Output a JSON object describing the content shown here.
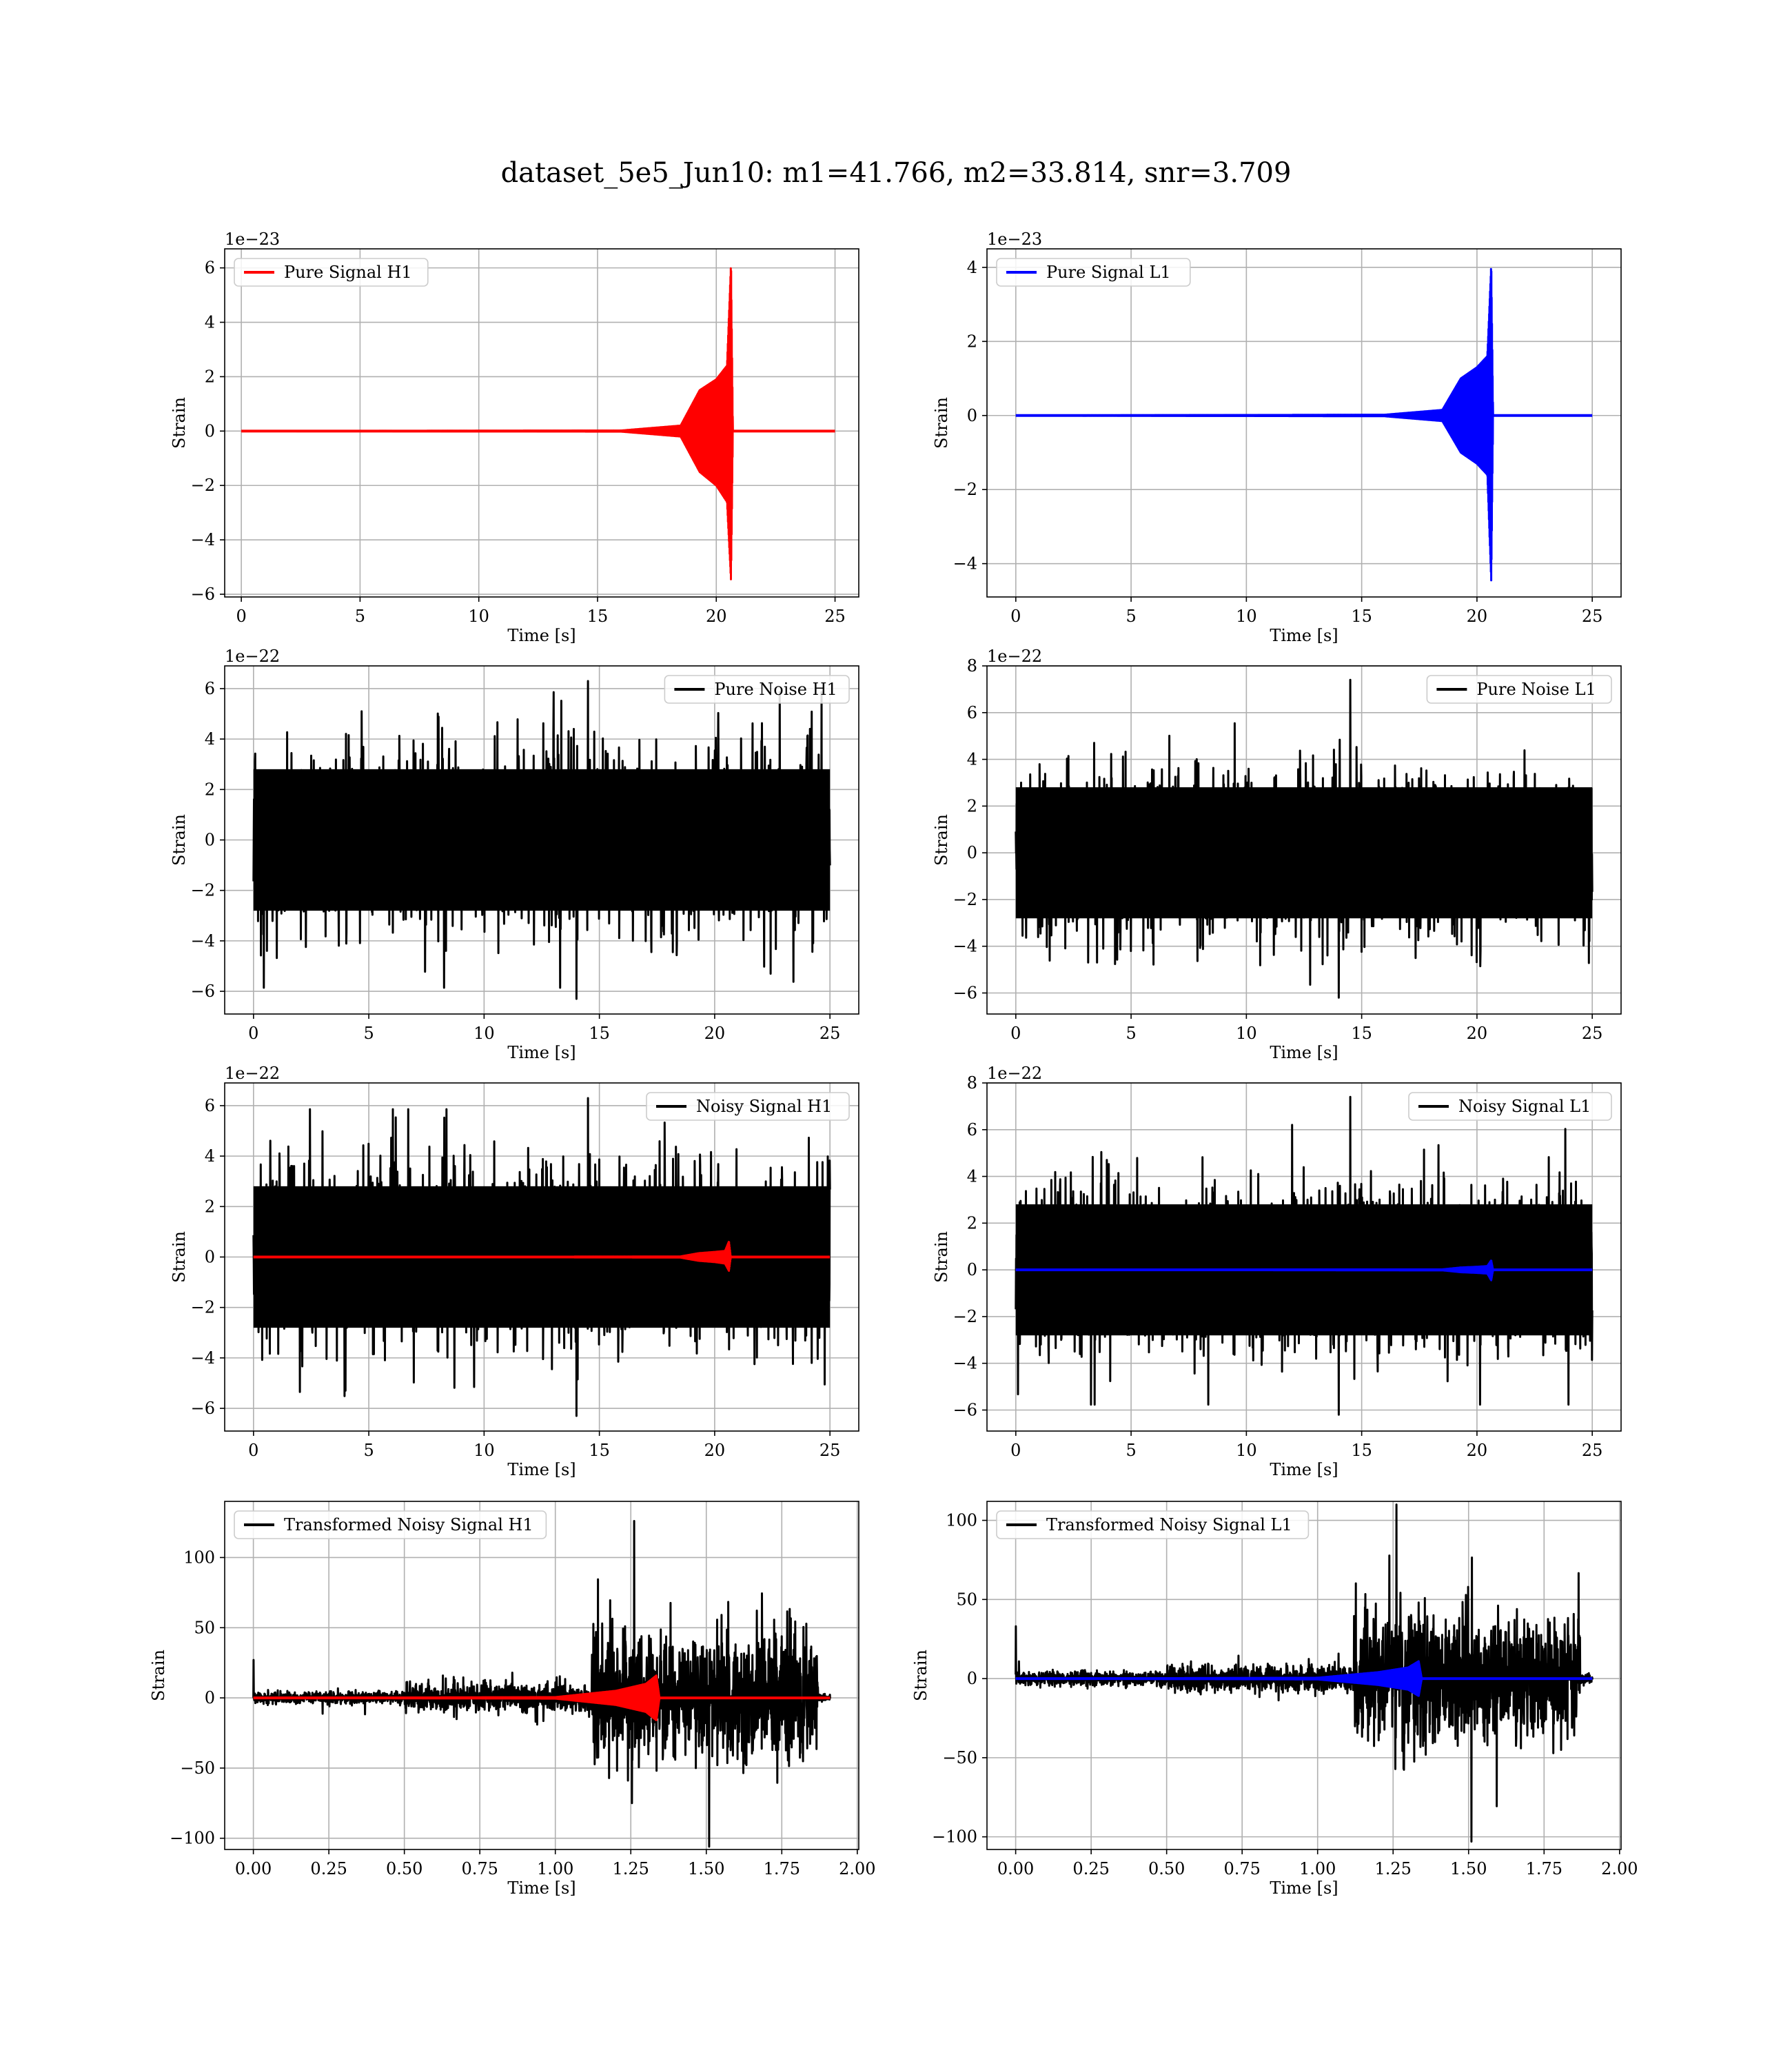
{
  "figure_title": "dataset_5e5_Jun10: m1=41.766, m2=33.814, snr=3.709",
  "colors": {
    "h1_signal": "#ff0000",
    "l1_signal": "#0000ff",
    "noise": "#000000",
    "grid": "#b0b0b0"
  },
  "chart_data": [
    {
      "type": "line",
      "panel": "pure-signal-h1",
      "legend": [
        "Pure Signal H1"
      ],
      "legend_placement": "upper-left",
      "xlabel": "Time [s]",
      "ylabel": "Strain",
      "offset_text": "1e−23",
      "xlim": [
        -0.7,
        26.0
      ],
      "ylim": [
        -6.1,
        6.7
      ],
      "xticks": [
        0,
        5,
        10,
        15,
        20,
        25
      ],
      "xtick_labels": [
        "0",
        "5",
        "10",
        "15",
        "20",
        "25"
      ],
      "yticks": [
        -6,
        -4,
        -2,
        0,
        2,
        4,
        6
      ],
      "ytick_labels": [
        "−6",
        "−4",
        "−2",
        "0",
        "2",
        "4",
        "6"
      ],
      "grid": true,
      "series": [
        {
          "name": "Pure Signal H1",
          "color": "#ff0000",
          "kind": "chirp",
          "envelope_pos": [
            [
              0,
              0
            ],
            [
              16,
              0.02
            ],
            [
              18.5,
              0.2
            ],
            [
              19.3,
              1.5
            ],
            [
              20.0,
              1.9
            ],
            [
              20.45,
              2.4
            ],
            [
              20.62,
              6.2
            ],
            [
              20.7,
              0
            ]
          ],
          "envelope_neg": [
            [
              0,
              0
            ],
            [
              16,
              -0.02
            ],
            [
              18.5,
              -0.2
            ],
            [
              19.3,
              -1.5
            ],
            [
              20.0,
              -2.0
            ],
            [
              20.45,
              -2.6
            ],
            [
              20.62,
              -5.5
            ],
            [
              20.7,
              0
            ]
          ],
          "baseline": [
            [
              0,
              0
            ],
            [
              25,
              0
            ]
          ]
        }
      ]
    },
    {
      "type": "line",
      "panel": "pure-signal-l1",
      "legend": [
        "Pure Signal L1"
      ],
      "legend_placement": "upper-left",
      "xlabel": "Time [s]",
      "ylabel": "Strain",
      "offset_text": "1e−23",
      "xlim": [
        -1.25,
        26.25
      ],
      "ylim": [
        -4.9,
        4.5
      ],
      "xticks": [
        0,
        5,
        10,
        15,
        20,
        25
      ],
      "xtick_labels": [
        "0",
        "5",
        "10",
        "15",
        "20",
        "25"
      ],
      "yticks": [
        -4,
        -2,
        0,
        2,
        4
      ],
      "ytick_labels": [
        "−4",
        "−2",
        "0",
        "2",
        "4"
      ],
      "grid": true,
      "series": [
        {
          "name": "Pure Signal L1",
          "color": "#0000ff",
          "kind": "chirp",
          "envelope_pos": [
            [
              0,
              0
            ],
            [
              16,
              0.02
            ],
            [
              18.5,
              0.15
            ],
            [
              19.3,
              1.0
            ],
            [
              20.0,
              1.3
            ],
            [
              20.45,
              1.6
            ],
            [
              20.62,
              4.1
            ],
            [
              20.7,
              0
            ]
          ],
          "envelope_neg": [
            [
              0,
              0
            ],
            [
              16,
              -0.02
            ],
            [
              18.5,
              -0.15
            ],
            [
              19.3,
              -1.0
            ],
            [
              20.0,
              -1.3
            ],
            [
              20.45,
              -1.6
            ],
            [
              20.62,
              -4.5
            ],
            [
              20.7,
              0
            ]
          ],
          "baseline": [
            [
              0,
              0
            ],
            [
              25,
              0
            ]
          ]
        }
      ]
    },
    {
      "type": "line",
      "panel": "pure-noise-h1",
      "legend": [
        "Pure Noise H1"
      ],
      "legend_placement": "upper-right",
      "xlabel": "Time [s]",
      "ylabel": "Strain",
      "offset_text": "1e−22",
      "xlim": [
        -1.25,
        26.25
      ],
      "ylim": [
        -6.9,
        6.9
      ],
      "xticks": [
        0,
        5,
        10,
        15,
        20,
        25
      ],
      "xtick_labels": [
        "0",
        "5",
        "10",
        "15",
        "20",
        "25"
      ],
      "yticks": [
        -6,
        -4,
        -2,
        0,
        2,
        4,
        6
      ],
      "ytick_labels": [
        "−6",
        "−4",
        "−2",
        "0",
        "2",
        "4",
        "6"
      ],
      "grid": true,
      "series": [
        {
          "name": "Pure Noise H1",
          "color": "#000000",
          "kind": "noise",
          "x_range": [
            0,
            25
          ],
          "band": [
            -3.3,
            3.3
          ],
          "peak_max": 6.3,
          "peak_min": -6.3
        }
      ]
    },
    {
      "type": "line",
      "panel": "pure-noise-l1",
      "legend": [
        "Pure Noise L1"
      ],
      "legend_placement": "upper-right",
      "xlabel": "Time [s]",
      "ylabel": "Strain",
      "offset_text": "1e−22",
      "xlim": [
        -1.25,
        26.25
      ],
      "ylim": [
        -6.9,
        8.0
      ],
      "xticks": [
        0,
        5,
        10,
        15,
        20,
        25
      ],
      "xtick_labels": [
        "0",
        "5",
        "10",
        "15",
        "20",
        "25"
      ],
      "yticks": [
        -6,
        -4,
        -2,
        0,
        2,
        4,
        6,
        8
      ],
      "ytick_labels": [
        "−6",
        "−4",
        "−2",
        "0",
        "2",
        "4",
        "6",
        "8"
      ],
      "grid": true,
      "series": [
        {
          "name": "Pure Noise L1",
          "color": "#000000",
          "kind": "noise",
          "x_range": [
            0,
            25
          ],
          "band": [
            -3.3,
            3.3
          ],
          "peak_max": 7.4,
          "peak_min": -6.2
        }
      ]
    },
    {
      "type": "line",
      "panel": "noisy-signal-h1",
      "legend": [
        "Noisy Signal H1"
      ],
      "legend_placement": "upper-right",
      "xlabel": "Time [s]",
      "ylabel": "Strain",
      "offset_text": "1e−22",
      "xlim": [
        -1.25,
        26.25
      ],
      "ylim": [
        -6.9,
        6.9
      ],
      "xticks": [
        0,
        5,
        10,
        15,
        20,
        25
      ],
      "xtick_labels": [
        "0",
        "5",
        "10",
        "15",
        "20",
        "25"
      ],
      "yticks": [
        -6,
        -4,
        -2,
        0,
        2,
        4,
        6
      ],
      "ytick_labels": [
        "−6",
        "−4",
        "−2",
        "0",
        "2",
        "4",
        "6"
      ],
      "grid": true,
      "series": [
        {
          "name": "Noisy Signal H1",
          "color": "#000000",
          "kind": "noise",
          "x_range": [
            0,
            25
          ],
          "band": [
            -3.3,
            3.3
          ],
          "peak_max": 6.3,
          "peak_min": -6.3
        },
        {
          "color": "#ff0000",
          "kind": "chirp",
          "envelope_pos": [
            [
              0,
              0
            ],
            [
              18.5,
              0.02
            ],
            [
              19.3,
              0.15
            ],
            [
              20.0,
              0.2
            ],
            [
              20.45,
              0.24
            ],
            [
              20.62,
              0.62
            ],
            [
              20.7,
              0
            ]
          ],
          "envelope_neg": [
            [
              0,
              0
            ],
            [
              18.5,
              -0.02
            ],
            [
              19.3,
              -0.15
            ],
            [
              20.0,
              -0.2
            ],
            [
              20.45,
              -0.26
            ],
            [
              20.62,
              -0.55
            ],
            [
              20.7,
              0
            ]
          ],
          "baseline": [
            [
              0,
              0
            ],
            [
              25,
              0
            ]
          ]
        }
      ]
    },
    {
      "type": "line",
      "panel": "noisy-signal-l1",
      "legend": [
        "Noisy Signal L1"
      ],
      "legend_placement": "upper-right",
      "xlabel": "Time [s]",
      "ylabel": "Strain",
      "offset_text": "1e−22",
      "xlim": [
        -1.25,
        26.25
      ],
      "ylim": [
        -6.9,
        8.0
      ],
      "xticks": [
        0,
        5,
        10,
        15,
        20,
        25
      ],
      "xtick_labels": [
        "0",
        "5",
        "10",
        "15",
        "20",
        "25"
      ],
      "yticks": [
        -6,
        -4,
        -2,
        0,
        2,
        4,
        6,
        8
      ],
      "ytick_labels": [
        "−6",
        "−4",
        "−2",
        "0",
        "2",
        "4",
        "6",
        "8"
      ],
      "grid": true,
      "series": [
        {
          "name": "Noisy Signal L1",
          "color": "#000000",
          "kind": "noise",
          "x_range": [
            0,
            25
          ],
          "band": [
            -3.3,
            3.3
          ],
          "peak_max": 7.4,
          "peak_min": -6.2
        },
        {
          "color": "#0000ff",
          "kind": "chirp",
          "envelope_pos": [
            [
              0,
              0
            ],
            [
              18.5,
              0.02
            ],
            [
              19.3,
              0.1
            ],
            [
              20.0,
              0.13
            ],
            [
              20.45,
              0.16
            ],
            [
              20.62,
              0.41
            ],
            [
              20.7,
              0
            ]
          ],
          "envelope_neg": [
            [
              0,
              0
            ],
            [
              18.5,
              -0.02
            ],
            [
              19.3,
              -0.1
            ],
            [
              20.0,
              -0.13
            ],
            [
              20.45,
              -0.16
            ],
            [
              20.62,
              -0.45
            ],
            [
              20.7,
              0
            ]
          ],
          "baseline": [
            [
              0,
              0
            ],
            [
              25,
              0
            ]
          ]
        }
      ]
    },
    {
      "type": "line",
      "panel": "transformed-noisy-signal-h1",
      "legend": [
        "Transformed Noisy Signal H1"
      ],
      "legend_placement": "upper-left",
      "xlabel": "Time [s]",
      "ylabel": "Strain",
      "xlim": [
        -0.095,
        2.005
      ],
      "ylim": [
        -108,
        140
      ],
      "xticks": [
        0,
        0.25,
        0.5,
        0.75,
        1.0,
        1.25,
        1.5,
        1.75,
        2.0
      ],
      "xtick_labels": [
        "0.00",
        "0.25",
        "0.50",
        "0.75",
        "1.00",
        "1.25",
        "1.50",
        "1.75",
        "2.00"
      ],
      "yticks": [
        -100,
        -50,
        0,
        50,
        100
      ],
      "ytick_labels": [
        "−100",
        "−50",
        "0",
        "50",
        "100"
      ],
      "grid": true,
      "series": [
        {
          "name": "Transformed Noisy Signal H1",
          "color": "#000000",
          "kind": "transformed",
          "x_range": [
            0,
            1.91
          ],
          "segments": [
            {
              "x": [
                0.0,
                0.5
              ],
              "band": [
                -6,
                6
              ]
            },
            {
              "x": [
                0.5,
                1.12
              ],
              "band": [
                -12,
                14
              ]
            },
            {
              "x": [
                1.12,
                1.87
              ],
              "band": [
                -55,
                60
              ]
            },
            {
              "x": [
                1.87,
                1.91
              ],
              "band": [
                -4,
                4
              ]
            }
          ],
          "peak_max": 126,
          "peak_min": -106,
          "initial_spike": 27
        },
        {
          "color": "#ff0000",
          "kind": "chirp",
          "envelope_pos": [
            [
              0,
              0
            ],
            [
              1.0,
              0.5
            ],
            [
              1.2,
              5
            ],
            [
              1.3,
              10
            ],
            [
              1.335,
              16
            ],
            [
              1.345,
              0
            ]
          ],
          "envelope_neg": [
            [
              0,
              0
            ],
            [
              1.0,
              -0.5
            ],
            [
              1.2,
              -5
            ],
            [
              1.3,
              -10
            ],
            [
              1.335,
              -16
            ],
            [
              1.345,
              0
            ]
          ],
          "baseline": [
            [
              0,
              0
            ],
            [
              1.91,
              0
            ]
          ]
        }
      ]
    },
    {
      "type": "line",
      "panel": "transformed-noisy-signal-l1",
      "legend": [
        "Transformed Noisy Signal L1"
      ],
      "legend_placement": "upper-left",
      "xlabel": "Time [s]",
      "ylabel": "Strain",
      "xlim": [
        -0.095,
        2.005
      ],
      "ylim": [
        -108,
        112
      ],
      "xticks": [
        0,
        0.25,
        0.5,
        0.75,
        1.0,
        1.25,
        1.5,
        1.75,
        2.0
      ],
      "xtick_labels": [
        "0.00",
        "0.25",
        "0.50",
        "0.75",
        "1.00",
        "1.25",
        "1.50",
        "1.75",
        "2.00"
      ],
      "yticks": [
        -100,
        -50,
        0,
        50,
        100
      ],
      "ytick_labels": [
        "−100",
        "−50",
        "0",
        "50",
        "100"
      ],
      "grid": true,
      "series": [
        {
          "name": "Transformed Noisy Signal L1",
          "color": "#000000",
          "kind": "transformed",
          "x_range": [
            0,
            1.91
          ],
          "segments": [
            {
              "x": [
                0.0,
                0.5
              ],
              "band": [
                -6,
                6
              ]
            },
            {
              "x": [
                0.5,
                1.12
              ],
              "band": [
                -10,
                12
              ]
            },
            {
              "x": [
                1.12,
                1.87
              ],
              "band": [
                -50,
                55
              ]
            },
            {
              "x": [
                1.87,
                1.91
              ],
              "band": [
                -4,
                4
              ]
            }
          ],
          "peak_max": 110,
          "peak_min": -103,
          "initial_spike": 33
        },
        {
          "color": "#0000ff",
          "kind": "chirp",
          "envelope_pos": [
            [
              0,
              0
            ],
            [
              1.0,
              0.5
            ],
            [
              1.2,
              4
            ],
            [
              1.3,
              7
            ],
            [
              1.335,
              11
            ],
            [
              1.345,
              0
            ]
          ],
          "envelope_neg": [
            [
              0,
              0
            ],
            [
              1.0,
              -0.5
            ],
            [
              1.2,
              -4
            ],
            [
              1.3,
              -7
            ],
            [
              1.335,
              -11
            ],
            [
              1.345,
              0
            ]
          ],
          "baseline": [
            [
              0,
              0
            ],
            [
              1.91,
              0
            ]
          ]
        }
      ]
    }
  ]
}
